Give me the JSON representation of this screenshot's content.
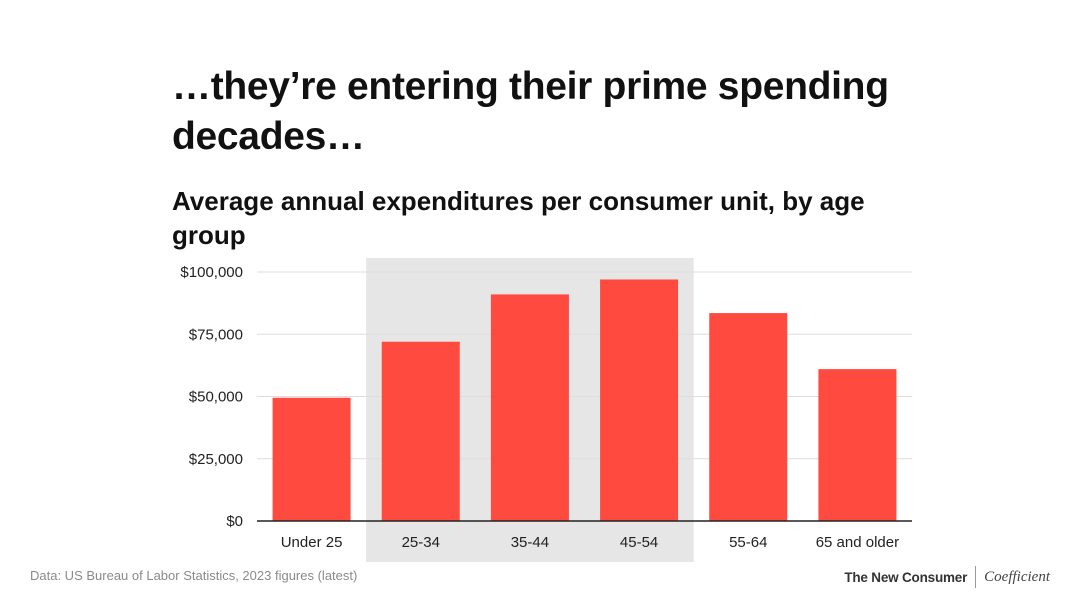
{
  "headline": "…they’re entering their prime spending decades…",
  "chart_data": {
    "type": "bar",
    "title": "Average annual expenditures per consumer unit, by age group",
    "xlabel": "",
    "ylabel": "",
    "categories": [
      "Under 25",
      "25-34",
      "35-44",
      "45-54",
      "55-64",
      "65 and older"
    ],
    "values": [
      49500,
      72000,
      91000,
      97000,
      83500,
      61000
    ],
    "ylim": [
      0,
      100000
    ],
    "yticks": [
      0,
      25000,
      50000,
      75000,
      100000
    ],
    "ytick_labels": [
      "$0",
      "$25,000",
      "$50,000",
      "$75,000",
      "$100,000"
    ],
    "highlighted_categories": [
      "25-34",
      "35-44",
      "45-54"
    ],
    "grid": true,
    "colors": {
      "bar": "#ff4a3f",
      "highlight_band": "#e6e6e6",
      "gridline": "#dddddd",
      "axis": "#222222"
    }
  },
  "footer": {
    "source": "Data: US Bureau of Labor Statistics, 2023 figures (latest)",
    "brand_primary": "The New Consumer",
    "brand_secondary": "Coefficient"
  }
}
